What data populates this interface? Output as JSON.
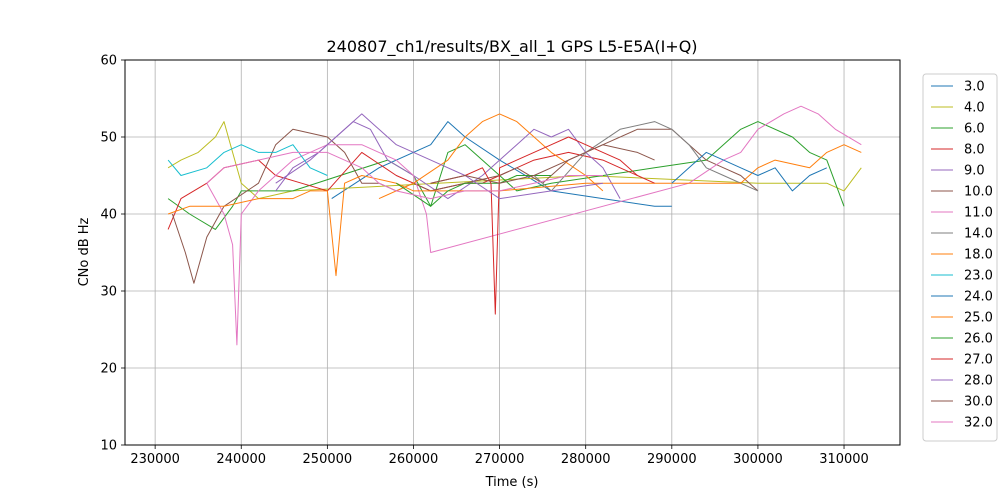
{
  "chart_data": {
    "type": "line",
    "title": "240807_ch1/results/BX_all_1 GPS L5-E5A(I+Q)",
    "xlabel": "Time (s)",
    "ylabel": "CNo dB Hz",
    "xlim": [
      226500,
      316500
    ],
    "ylim": [
      10,
      60
    ],
    "xticks": [
      230000,
      240000,
      250000,
      260000,
      270000,
      280000,
      290000,
      300000,
      310000
    ],
    "xtick_labels": [
      "230000",
      "240000",
      "250000",
      "260000",
      "270000",
      "280000",
      "290000",
      "300000",
      "310000"
    ],
    "yticks": [
      10,
      20,
      30,
      40,
      50,
      60
    ],
    "ytick_labels": [
      "10",
      "20",
      "30",
      "40",
      "50",
      "60"
    ],
    "grid": true,
    "legend_position": "right",
    "series": [
      {
        "name": "3.0",
        "color": "#1f77b4",
        "points": [
          [
            250500,
            42
          ],
          [
            256000,
            46
          ],
          [
            262000,
            49
          ],
          [
            264000,
            52
          ],
          [
            266000,
            50
          ],
          [
            270000,
            47
          ],
          [
            276000,
            43
          ],
          [
            282000,
            42
          ],
          [
            288000,
            41
          ],
          [
            290000,
            41
          ]
        ]
      },
      {
        "name": "4.0",
        "color": "#bcbd22",
        "points": [
          [
            231500,
            46
          ],
          [
            233000,
            47
          ],
          [
            235000,
            48
          ],
          [
            237000,
            50
          ],
          [
            238000,
            52
          ],
          [
            239000,
            48
          ],
          [
            240000,
            44
          ],
          [
            242000,
            42
          ],
          [
            246000,
            43
          ],
          [
            280000,
            45
          ],
          [
            300000,
            44
          ],
          [
            308000,
            44
          ],
          [
            310000,
            43
          ],
          [
            312000,
            46
          ]
        ]
      },
      {
        "name": "6.0",
        "color": "#2ca02c",
        "points": [
          [
            231500,
            42
          ],
          [
            234000,
            40
          ],
          [
            237000,
            38
          ],
          [
            239000,
            41
          ],
          [
            240000,
            43
          ],
          [
            246000,
            43
          ],
          [
            257000,
            47
          ],
          [
            260000,
            45
          ],
          [
            262000,
            41
          ],
          [
            264000,
            48
          ],
          [
            266000,
            49
          ],
          [
            268000,
            47
          ],
          [
            270000,
            45
          ],
          [
            272000,
            43
          ],
          [
            276000,
            44
          ],
          [
            288000,
            46
          ],
          [
            294000,
            47
          ],
          [
            298000,
            51
          ],
          [
            300000,
            52
          ],
          [
            304000,
            50
          ],
          [
            306000,
            48
          ],
          [
            308000,
            47
          ],
          [
            310000,
            41
          ]
        ]
      },
      {
        "name": "8.0",
        "color": "#d62728",
        "points": [
          [
            231500,
            38
          ],
          [
            233000,
            42
          ],
          [
            236000,
            44
          ],
          [
            238000,
            46
          ],
          [
            242000,
            47
          ],
          [
            244000,
            45
          ],
          [
            247000,
            44
          ],
          [
            250000,
            43
          ],
          [
            254000,
            48
          ],
          [
            258000,
            45
          ],
          [
            262000,
            43
          ],
          [
            266000,
            44
          ],
          [
            268000,
            44
          ],
          [
            270000,
            45
          ],
          [
            274000,
            47
          ],
          [
            278000,
            48
          ],
          [
            282000,
            47
          ],
          [
            284000,
            46
          ],
          [
            286000,
            45
          ]
        ]
      },
      {
        "name": "9.0",
        "color": "#9467bd",
        "points": [
          [
            244000,
            43
          ],
          [
            246000,
            46
          ],
          [
            249000,
            48
          ],
          [
            251000,
            50
          ],
          [
            253000,
            52
          ],
          [
            255000,
            51
          ],
          [
            257000,
            47
          ],
          [
            260000,
            45
          ],
          [
            264000,
            42
          ],
          [
            268000,
            45
          ],
          [
            272000,
            49
          ],
          [
            274000,
            51
          ],
          [
            276000,
            50
          ],
          [
            278000,
            51
          ],
          [
            280000,
            48
          ],
          [
            282000,
            46
          ],
          [
            284000,
            42
          ]
        ]
      },
      {
        "name": "10.0",
        "color": "#8c564b",
        "points": [
          [
            232000,
            40
          ],
          [
            233500,
            35
          ],
          [
            234500,
            31
          ],
          [
            236000,
            37
          ],
          [
            238000,
            41
          ],
          [
            242000,
            44
          ],
          [
            244000,
            49
          ],
          [
            246000,
            51
          ],
          [
            250000,
            50
          ],
          [
            252000,
            48
          ],
          [
            254000,
            44
          ],
          [
            256000,
            44
          ],
          [
            258000,
            43
          ],
          [
            260000,
            44
          ],
          [
            262000,
            43
          ],
          [
            266000,
            44
          ],
          [
            270000,
            45
          ],
          [
            272000,
            46
          ],
          [
            275000,
            44
          ],
          [
            278000,
            47
          ],
          [
            282000,
            49
          ],
          [
            286000,
            51
          ],
          [
            290000,
            51
          ],
          [
            292000,
            49
          ],
          [
            294000,
            47
          ],
          [
            296000,
            46
          ],
          [
            298000,
            45
          ],
          [
            300000,
            43
          ]
        ]
      },
      {
        "name": "11.0",
        "color": "#e377c2",
        "points": [
          [
            236000,
            44
          ],
          [
            238000,
            40
          ],
          [
            239000,
            36
          ],
          [
            239500,
            23
          ],
          [
            240000,
            40
          ],
          [
            242000,
            43
          ],
          [
            246000,
            47
          ],
          [
            250000,
            49
          ],
          [
            254000,
            49
          ],
          [
            256000,
            48
          ],
          [
            258000,
            47
          ],
          [
            260000,
            45
          ],
          [
            261500,
            40
          ],
          [
            262000,
            35
          ],
          [
            292000,
            44
          ],
          [
            296000,
            47
          ],
          [
            298000,
            48
          ],
          [
            300000,
            51
          ],
          [
            303000,
            53
          ],
          [
            305000,
            54
          ],
          [
            307000,
            53
          ],
          [
            309000,
            51
          ],
          [
            312000,
            49
          ]
        ]
      },
      {
        "name": "14.0",
        "color": "#7f7f7f",
        "points": [
          [
            274000,
            45
          ],
          [
            276000,
            43
          ],
          [
            280000,
            48
          ],
          [
            284000,
            51
          ],
          [
            288000,
            52
          ],
          [
            290000,
            51
          ],
          [
            292000,
            49
          ],
          [
            294000,
            46
          ],
          [
            296000,
            45
          ],
          [
            300000,
            43
          ]
        ]
      },
      {
        "name": "18.0",
        "color": "#ff7f0e",
        "points": [
          [
            231500,
            40
          ],
          [
            234000,
            41
          ],
          [
            238000,
            41
          ],
          [
            242000,
            42
          ],
          [
            246000,
            42
          ],
          [
            248000,
            43
          ],
          [
            250000,
            43
          ],
          [
            251000,
            32
          ],
          [
            252000,
            44
          ],
          [
            254000,
            45
          ],
          [
            258000,
            44
          ],
          [
            260000,
            43
          ],
          [
            270000,
            43
          ],
          [
            280000,
            44
          ],
          [
            290000,
            44
          ],
          [
            298000,
            44
          ],
          [
            300000,
            46
          ],
          [
            302000,
            47
          ],
          [
            306000,
            46
          ],
          [
            308000,
            48
          ],
          [
            310000,
            49
          ],
          [
            312000,
            48
          ]
        ]
      },
      {
        "name": "23.0",
        "color": "#17becf",
        "points": [
          [
            231500,
            47
          ],
          [
            233000,
            45
          ],
          [
            236000,
            46
          ],
          [
            238000,
            48
          ],
          [
            240000,
            49
          ],
          [
            242000,
            48
          ],
          [
            244000,
            48
          ],
          [
            246000,
            49
          ],
          [
            248000,
            46
          ],
          [
            250000,
            45
          ]
        ]
      },
      {
        "name": "24.0",
        "color": "#1f77b4",
        "points": [
          [
            290000,
            44
          ],
          [
            292000,
            46
          ],
          [
            294000,
            48
          ],
          [
            296000,
            47
          ],
          [
            298000,
            46
          ],
          [
            300000,
            45
          ],
          [
            302000,
            46
          ],
          [
            304000,
            43
          ],
          [
            306000,
            45
          ],
          [
            308000,
            46
          ]
        ]
      },
      {
        "name": "25.0",
        "color": "#ff7f0e",
        "points": [
          [
            256000,
            42
          ],
          [
            260000,
            44
          ],
          [
            264000,
            47
          ],
          [
            266000,
            50
          ],
          [
            268000,
            52
          ],
          [
            270000,
            53
          ],
          [
            272000,
            52
          ],
          [
            276000,
            48
          ],
          [
            280000,
            45
          ],
          [
            282000,
            43
          ]
        ]
      },
      {
        "name": "26.0",
        "color": "#2ca02c",
        "points": [
          [
            258000,
            44
          ],
          [
            262000,
            41
          ],
          [
            264000,
            43
          ],
          [
            266000,
            44
          ],
          [
            270000,
            44
          ],
          [
            272000,
            45
          ],
          [
            276000,
            45
          ]
        ]
      },
      {
        "name": "27.0",
        "color": "#d62728",
        "points": [
          [
            262000,
            44
          ],
          [
            266000,
            45
          ],
          [
            268000,
            46
          ],
          [
            269000,
            44
          ],
          [
            269500,
            27
          ],
          [
            270000,
            46
          ],
          [
            272000,
            47
          ],
          [
            276000,
            49
          ],
          [
            278000,
            50
          ],
          [
            280000,
            49
          ],
          [
            282000,
            48
          ],
          [
            284000,
            47
          ],
          [
            286000,
            45
          ],
          [
            288000,
            44
          ]
        ]
      },
      {
        "name": "28.0",
        "color": "#9467bd",
        "points": [
          [
            244000,
            44
          ],
          [
            248000,
            47
          ],
          [
            252000,
            51
          ],
          [
            254000,
            53
          ],
          [
            256000,
            51
          ],
          [
            258000,
            49
          ],
          [
            262000,
            47
          ],
          [
            266000,
            45
          ],
          [
            270000,
            42
          ],
          [
            276000,
            43
          ],
          [
            282000,
            44
          ]
        ]
      },
      {
        "name": "30.0",
        "color": "#8c564b",
        "points": [
          [
            262000,
            44
          ],
          [
            266000,
            45
          ],
          [
            270000,
            44
          ],
          [
            274000,
            45
          ],
          [
            278000,
            47
          ],
          [
            282000,
            49
          ],
          [
            286000,
            48
          ],
          [
            288000,
            47
          ]
        ]
      },
      {
        "name": "32.0",
        "color": "#e377c2",
        "points": [
          [
            236000,
            44
          ],
          [
            238000,
            46
          ],
          [
            242000,
            47
          ],
          [
            246000,
            48
          ],
          [
            250000,
            48
          ],
          [
            254000,
            46
          ],
          [
            256000,
            44
          ],
          [
            258000,
            43
          ],
          [
            262000,
            42
          ],
          [
            266000,
            43
          ],
          [
            270000,
            43
          ],
          [
            274000,
            44
          ],
          [
            278000,
            45
          ],
          [
            282000,
            45
          ]
        ]
      }
    ]
  }
}
